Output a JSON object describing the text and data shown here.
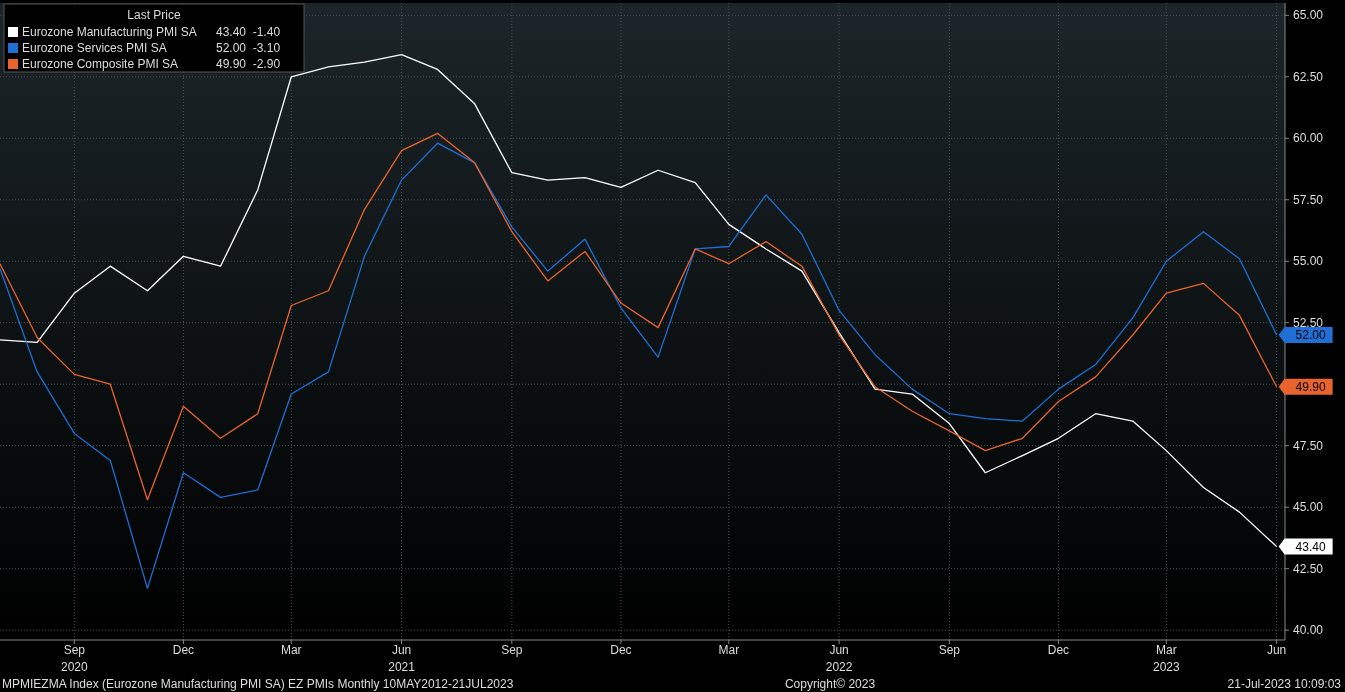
{
  "chart_data": {
    "type": "line",
    "legend_title": "Last Price",
    "legend": "top left",
    "grid": true,
    "x": [
      "2020-07",
      "2020-08",
      "2020-09",
      "2020-10",
      "2020-11",
      "2020-12",
      "2021-01",
      "2021-02",
      "2021-03",
      "2021-04",
      "2021-05",
      "2021-06",
      "2021-07",
      "2021-08",
      "2021-09",
      "2021-10",
      "2021-11",
      "2021-12",
      "2022-01",
      "2022-02",
      "2022-03",
      "2022-04",
      "2022-05",
      "2022-06",
      "2022-07",
      "2022-08",
      "2022-09",
      "2022-10",
      "2022-11",
      "2022-12",
      "2023-01",
      "2023-02",
      "2023-03",
      "2023-04",
      "2023-05",
      "2023-06"
    ],
    "xlim": [
      "2020-07",
      "2023-06-08"
    ],
    "xticks": [
      {
        "value": "2020-09",
        "label": "Sep\n2020"
      },
      {
        "value": "2020-12",
        "label": "Dec"
      },
      {
        "value": "2021-03",
        "label": "Mar"
      },
      {
        "value": "2021-06",
        "label": "Jun\n2021"
      },
      {
        "value": "2021-09",
        "label": "Sep"
      },
      {
        "value": "2021-12",
        "label": "Dec"
      },
      {
        "value": "2022-03",
        "label": "Mar"
      },
      {
        "value": "2022-06",
        "label": "Jun\n2022"
      },
      {
        "value": "2022-09",
        "label": "Sep"
      },
      {
        "value": "2022-12",
        "label": "Dec"
      },
      {
        "value": "2023-03",
        "label": "Mar\n2023"
      },
      {
        "value": "2023-06",
        "label": "Jun"
      }
    ],
    "ylim": [
      39.6,
      65.5
    ],
    "yticks": [
      {
        "value": 40,
        "label": "40.00"
      },
      {
        "value": 42.5,
        "label": "42.50"
      },
      {
        "value": 45,
        "label": "45.00"
      },
      {
        "value": 47.5,
        "label": "47.50"
      },
      {
        "value": 50,
        "label": null
      },
      {
        "value": 52.5,
        "label": "52.50"
      },
      {
        "value": 55,
        "label": "55.00"
      },
      {
        "value": 57.5,
        "label": "57.50"
      },
      {
        "value": 60,
        "label": "60.00"
      },
      {
        "value": 62.5,
        "label": "62.50"
      },
      {
        "value": 65,
        "label": "65.00"
      }
    ],
    "series": [
      {
        "name": "Eurozone Manufacturing PMI SA",
        "color": "#ffffff",
        "values": [
          51.8,
          51.7,
          53.7,
          54.8,
          53.8,
          55.2,
          54.8,
          57.9,
          62.5,
          62.9,
          63.1,
          63.4,
          62.8,
          61.4,
          58.6,
          58.3,
          58.4,
          58.0,
          58.7,
          58.2,
          56.5,
          55.5,
          54.6,
          52.1,
          49.8,
          49.6,
          48.4,
          46.4,
          47.1,
          47.8,
          48.8,
          48.5,
          47.3,
          45.8,
          44.8,
          43.4
        ],
        "value_labels": [
          null,
          null,
          null,
          null,
          null,
          null,
          null,
          null,
          null,
          null,
          null,
          null,
          null,
          null,
          null,
          null,
          null,
          null,
          null,
          null,
          null,
          null,
          null,
          null,
          null,
          null,
          null,
          null,
          null,
          null,
          null,
          null,
          null,
          null,
          null,
          "43.40"
        ]
      },
      {
        "name": "Eurozone Services PMI SA",
        "color": "#1f6fd6",
        "values": [
          54.7,
          50.5,
          48.0,
          46.9,
          41.7,
          46.4,
          45.4,
          45.7,
          49.6,
          50.5,
          55.2,
          58.3,
          59.8,
          59.0,
          56.4,
          54.6,
          55.9,
          53.1,
          51.1,
          55.5,
          55.6,
          57.7,
          56.1,
          53.0,
          51.2,
          49.8,
          48.8,
          48.6,
          48.5,
          49.8,
          50.8,
          52.7,
          55.0,
          56.2,
          55.1,
          52.0
        ],
        "value_labels": [
          null,
          null,
          null,
          null,
          null,
          null,
          null,
          null,
          null,
          null,
          null,
          null,
          null,
          null,
          null,
          null,
          null,
          null,
          null,
          null,
          null,
          null,
          null,
          null,
          null,
          null,
          null,
          null,
          null,
          null,
          null,
          null,
          null,
          null,
          null,
          "52.00"
        ]
      },
      {
        "name": "Eurozone Composite PMI SA",
        "color": "#e8642c",
        "values": [
          54.9,
          51.9,
          50.4,
          50.0,
          45.3,
          49.1,
          47.8,
          48.8,
          53.2,
          53.8,
          57.1,
          59.5,
          60.2,
          59.0,
          56.2,
          54.2,
          55.4,
          53.3,
          52.3,
          55.5,
          54.9,
          55.8,
          54.8,
          52.0,
          49.9,
          48.9,
          48.1,
          47.3,
          47.8,
          49.3,
          50.3,
          52.0,
          53.7,
          54.1,
          52.8,
          49.9
        ],
        "value_labels": [
          null,
          null,
          null,
          null,
          null,
          null,
          null,
          null,
          null,
          null,
          null,
          null,
          null,
          null,
          null,
          null,
          null,
          null,
          null,
          null,
          null,
          null,
          null,
          null,
          null,
          null,
          null,
          null,
          null,
          null,
          null,
          null,
          null,
          null,
          null,
          "49.90"
        ]
      }
    ],
    "annotations": [
      "MPMIEZMA Index (Eurozone Manufacturing PMI SA) EZ PMIs  Monthly 10MAY2012-21JUL2023",
      "Copyright© 2023",
      "21-Jul-2023 10:09:03",
      "43.40  -1.40",
      "52.00  -3.10",
      "49.90  -2.90"
    ]
  }
}
